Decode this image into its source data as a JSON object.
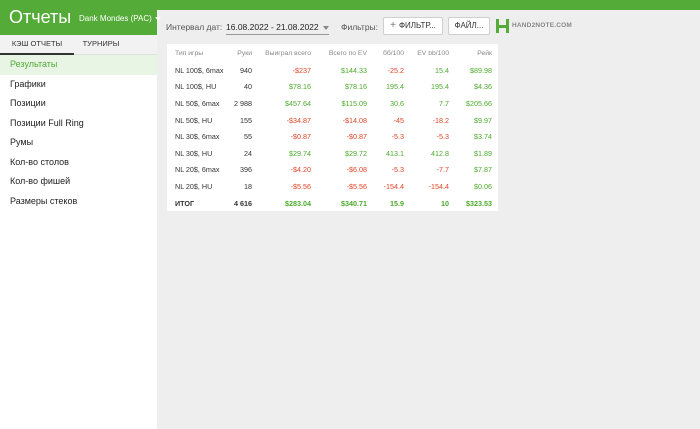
{
  "app": {
    "title": "Отчеты",
    "user": "Dank Mondes (PAC)"
  },
  "sidebar": {
    "tabs": [
      {
        "label": "КЭШ ОТЧЕТЫ",
        "active": true
      },
      {
        "label": "ТУРНИРЫ",
        "active": false
      }
    ],
    "items": [
      {
        "label": "Результаты",
        "active": true
      },
      {
        "label": "Графики"
      },
      {
        "label": "Позиции"
      },
      {
        "label": "Позиции Full Ring"
      },
      {
        "label": "Румы"
      },
      {
        "label": "Кол-во столов"
      },
      {
        "label": "Кол-во фишей"
      },
      {
        "label": "Размеры стеков"
      }
    ]
  },
  "toolbar": {
    "date_label": "Интервал дат:",
    "date_range": "16.08.2022 - 21.08.2022",
    "filters_label": "Фильтры:",
    "filter_button": "ФИЛЬТР...",
    "file_button": "ФАЙЛ...",
    "logo_text": "HAND2NOTE.COM"
  },
  "colors": {
    "brand_green": "#55ab38",
    "positive": "#4caa2b",
    "negative": "#e04525"
  },
  "table": {
    "headers": [
      "Тип игры",
      "Руки",
      "Выиграл всего",
      "Всего по EV",
      "бб/100",
      "EV bb/100",
      "Рейк"
    ],
    "rows": [
      {
        "game": "NL 100$, 6max",
        "hands": "940",
        "won": "-$237",
        "ev": "$144.33",
        "bb": "-25.2",
        "evbb": "15.4",
        "rake": "$89.98"
      },
      {
        "game": "NL 100$, HU",
        "hands": "40",
        "won": "$78.16",
        "ev": "$78.16",
        "bb": "195.4",
        "evbb": "195.4",
        "rake": "$4.36"
      },
      {
        "game": "NL 50$, 6max",
        "hands": "2 988",
        "won": "$457.64",
        "ev": "$115.09",
        "bb": "30.6",
        "evbb": "7.7",
        "rake": "$205.66"
      },
      {
        "game": "NL 50$, HU",
        "hands": "155",
        "won": "-$34.87",
        "ev": "-$14.08",
        "bb": "-45",
        "evbb": "-18.2",
        "rake": "$9.97"
      },
      {
        "game": "NL 30$, 6max",
        "hands": "55",
        "won": "-$0.87",
        "ev": "-$0.87",
        "bb": "-5.3",
        "evbb": "-5.3",
        "rake": "$3.74"
      },
      {
        "game": "NL 30$, HU",
        "hands": "24",
        "won": "$29.74",
        "ev": "$29.72",
        "bb": "413.1",
        "evbb": "412.8",
        "rake": "$1.89"
      },
      {
        "game": "NL 20$, 6max",
        "hands": "396",
        "won": "-$4.20",
        "ev": "-$6.08",
        "bb": "-5.3",
        "evbb": "-7.7",
        "rake": "$7.87"
      },
      {
        "game": "NL 20$, HU",
        "hands": "18",
        "won": "-$5.56",
        "ev": "-$5.56",
        "bb": "-154.4",
        "evbb": "-154.4",
        "rake": "$0.06"
      }
    ],
    "total": {
      "game": "ИТОГ",
      "hands": "4 616",
      "won": "$283.04",
      "ev": "$340.71",
      "bb": "15.9",
      "evbb": "10",
      "rake": "$323.53"
    }
  }
}
